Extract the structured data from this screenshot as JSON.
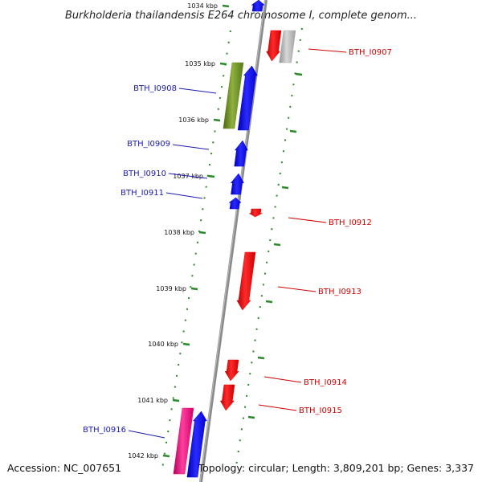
{
  "title": "Burkholderia thailandensis E264 chromosome I, complete genom...",
  "footer": {
    "accession": "Accession: NC_007651",
    "topology": "Topology: circular; Length: 3,809,201 bp; Genes: 3,337"
  },
  "colors": {
    "backbone": "#8a8a8a",
    "tick": "#2a8a2a",
    "label_left": "#1a1ab0",
    "label_right": "#d00000"
  },
  "scale_labels": [
    "1034 kbp",
    "1035 kbp",
    "1036 kbp",
    "1037 kbp",
    "1038 kbp",
    "1039 kbp",
    "1040 kbp",
    "1041 kbp",
    "1042 kbp"
  ],
  "genes": [
    {
      "id": "top-blue",
      "label": "",
      "strand": "+",
      "color": "#0000ee"
    },
    {
      "id": "top-red",
      "label": "BTH_I0907",
      "strand": "-",
      "color": "#ee0000"
    },
    {
      "id": "top-gray",
      "label": "",
      "strand": "-",
      "color": "#b0b0b0"
    },
    {
      "id": "green",
      "label": "",
      "strand": "+",
      "color": "#6b8e23"
    },
    {
      "id": "g0908",
      "label": "BTH_I0908",
      "strand": "+",
      "color": "#0000ee"
    },
    {
      "id": "g0909",
      "label": "BTH_I0909",
      "strand": "+",
      "color": "#0000ee"
    },
    {
      "id": "g0910",
      "label": "BTH_I0910",
      "strand": "+",
      "color": "#0000ee"
    },
    {
      "id": "g0911",
      "label": "BTH_I0911",
      "strand": "+",
      "color": "#0000ee"
    },
    {
      "id": "g0912",
      "label": "BTH_I0912",
      "strand": "-",
      "color": "#ee0000"
    },
    {
      "id": "g0913",
      "label": "BTH_I0913",
      "strand": "-",
      "color": "#ee0000"
    },
    {
      "id": "g0914",
      "label": "BTH_I0914",
      "strand": "-",
      "color": "#ee0000"
    },
    {
      "id": "g0915",
      "label": "BTH_I0915",
      "strand": "-",
      "color": "#ee0000"
    },
    {
      "id": "pink",
      "label": "",
      "strand": "+",
      "color": "#ee1177"
    },
    {
      "id": "g0916",
      "label": "BTH_I0916",
      "strand": "+",
      "color": "#0000ee"
    }
  ]
}
